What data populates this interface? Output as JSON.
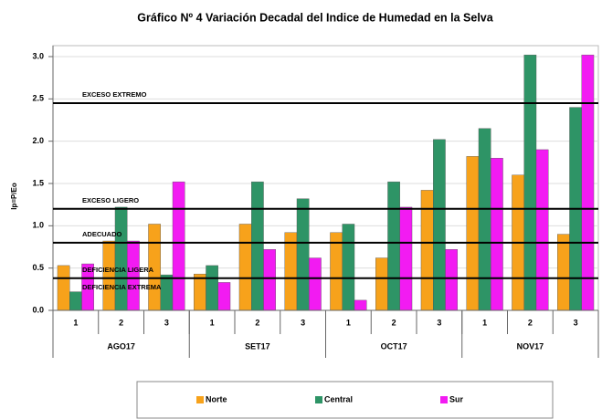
{
  "chart_data": {
    "type": "bar",
    "title": "Gráfico Nº 4 Variación Decadal del Indice de Humedad en la Selva",
    "y_label": "Ip=P/Eo",
    "categories": [
      "1",
      "2",
      "3",
      "1",
      "2",
      "3",
      "1",
      "2",
      "3",
      "1",
      "2",
      "3"
    ],
    "groups": [
      {
        "label": "AGO17",
        "size": 3
      },
      {
        "label": "SET17",
        "size": 3
      },
      {
        "label": "OCT17",
        "size": 3
      },
      {
        "label": "NOV17",
        "size": 3
      }
    ],
    "series": [
      {
        "name": "Norte",
        "color": "#f7a21b",
        "values": [
          0.53,
          0.82,
          1.02,
          0.43,
          1.02,
          0.92,
          0.92,
          0.62,
          1.42,
          1.82,
          1.6,
          0.9
        ]
      },
      {
        "name": "Central",
        "color": "#2e9466",
        "values": [
          0.22,
          1.22,
          0.42,
          0.53,
          1.52,
          1.32,
          1.02,
          1.52,
          2.02,
          2.15,
          3.02,
          2.4
        ]
      },
      {
        "name": "Sur",
        "color": "#f21bf2",
        "values": [
          0.55,
          0.82,
          1.52,
          0.33,
          0.72,
          0.62,
          0.12,
          1.22,
          0.72,
          1.8,
          1.9,
          3.02
        ]
      }
    ],
    "reference_lines": [
      2.45,
      1.2,
      0.8,
      0.38
    ],
    "zone_labels": [
      "EXCESO EXTREMO",
      "EXCESO LIGERO",
      "ADECUADO",
      "DEFICIENCIA LIGERA",
      "DEFICIENCIA EXTREMA"
    ],
    "ylim": [
      0,
      3
    ],
    "yticks": [
      {
        "value": 0,
        "label": "0.0"
      },
      {
        "value": 0.5,
        "label": "0.5"
      },
      {
        "value": 1,
        "label": "1.0"
      },
      {
        "value": 1.5,
        "label": "1.5"
      },
      {
        "value": 2,
        "label": "2.0"
      },
      {
        "value": 2.5,
        "label": "2.5"
      },
      {
        "value": 3,
        "label": "3.0"
      }
    ],
    "grid": true,
    "legend": "bottom"
  }
}
